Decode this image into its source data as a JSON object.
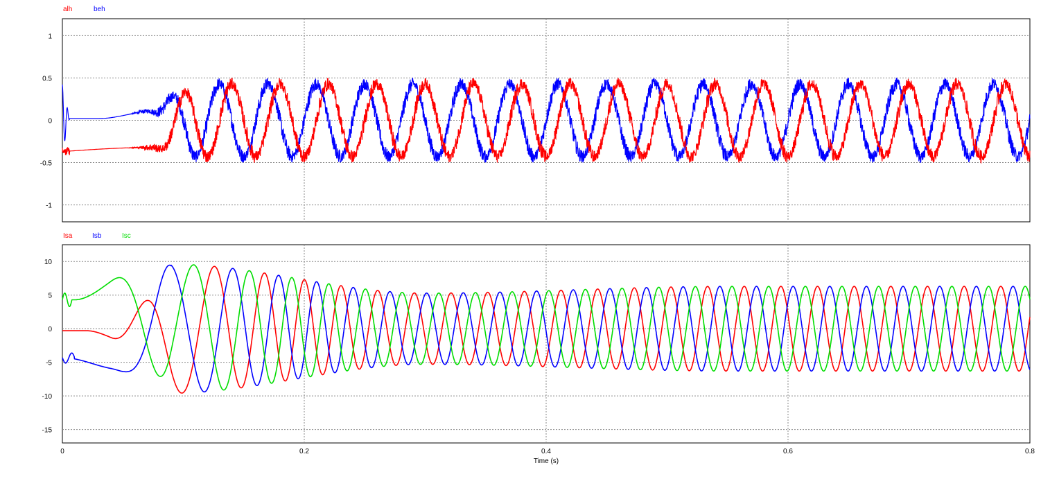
{
  "chart_data": [
    {
      "type": "line",
      "title": "",
      "xlabel": "",
      "ylabel": "",
      "xlim": [
        0,
        0.8
      ],
      "ylim": [
        -1.2,
        1.2
      ],
      "grid": true,
      "legend_placement": "top-left",
      "x_ticks": [
        0,
        0.2,
        0.4,
        0.6,
        0.8
      ],
      "y_ticks": [
        1,
        0.5,
        0,
        -0.5,
        -1
      ],
      "y_tick_labels": [
        "1",
        "0.5",
        "0",
        "-0.5",
        "-1"
      ],
      "series": [
        {
          "name": "alh",
          "color": "#ff0000",
          "description_params": {
            "start_level": -0.37,
            "steady_amplitude": 0.43,
            "frequency_hz": 25,
            "ripple": 0.12,
            "phase_deg": 0
          }
        },
        {
          "name": "beh",
          "color": "#0000ff",
          "description_params": {
            "start_level": 0.02,
            "steady_amplitude": 0.43,
            "frequency_hz": 25,
            "ripple": 0.12,
            "phase_deg": 90
          }
        }
      ]
    },
    {
      "type": "line",
      "title": "",
      "xlabel": "Time (s)",
      "ylabel": "",
      "xlim": [
        0,
        0.8
      ],
      "ylim": [
        -17,
        12.5
      ],
      "grid": true,
      "legend_placement": "top-left",
      "x_ticks": [
        0,
        0.2,
        0.4,
        0.6,
        0.8
      ],
      "x_tick_labels": [
        "0",
        "0.2",
        "0.4",
        "0.6",
        "0.8"
      ],
      "y_ticks": [
        10,
        5,
        0,
        -5,
        -10,
        -15
      ],
      "y_tick_labels": [
        "10",
        "5",
        "0",
        "-5",
        "-10",
        "-15"
      ],
      "series": [
        {
          "name": "Isa",
          "color": "#ff0000",
          "peak_values": {
            "t0_09": 9.5,
            "t0_3": 5.3,
            "t0_8": 6.2
          }
        },
        {
          "name": "Isb",
          "color": "#0000ff",
          "peak_values": {
            "t0_09": 9.7,
            "t0_3": 5.3,
            "t0_8": 6.2
          }
        },
        {
          "name": "Isc",
          "color": "#00dd00",
          "peak_values": {
            "t0_09": 9.5,
            "t0_3": 5.3,
            "t0_8": 6.2
          }
        }
      ]
    }
  ]
}
